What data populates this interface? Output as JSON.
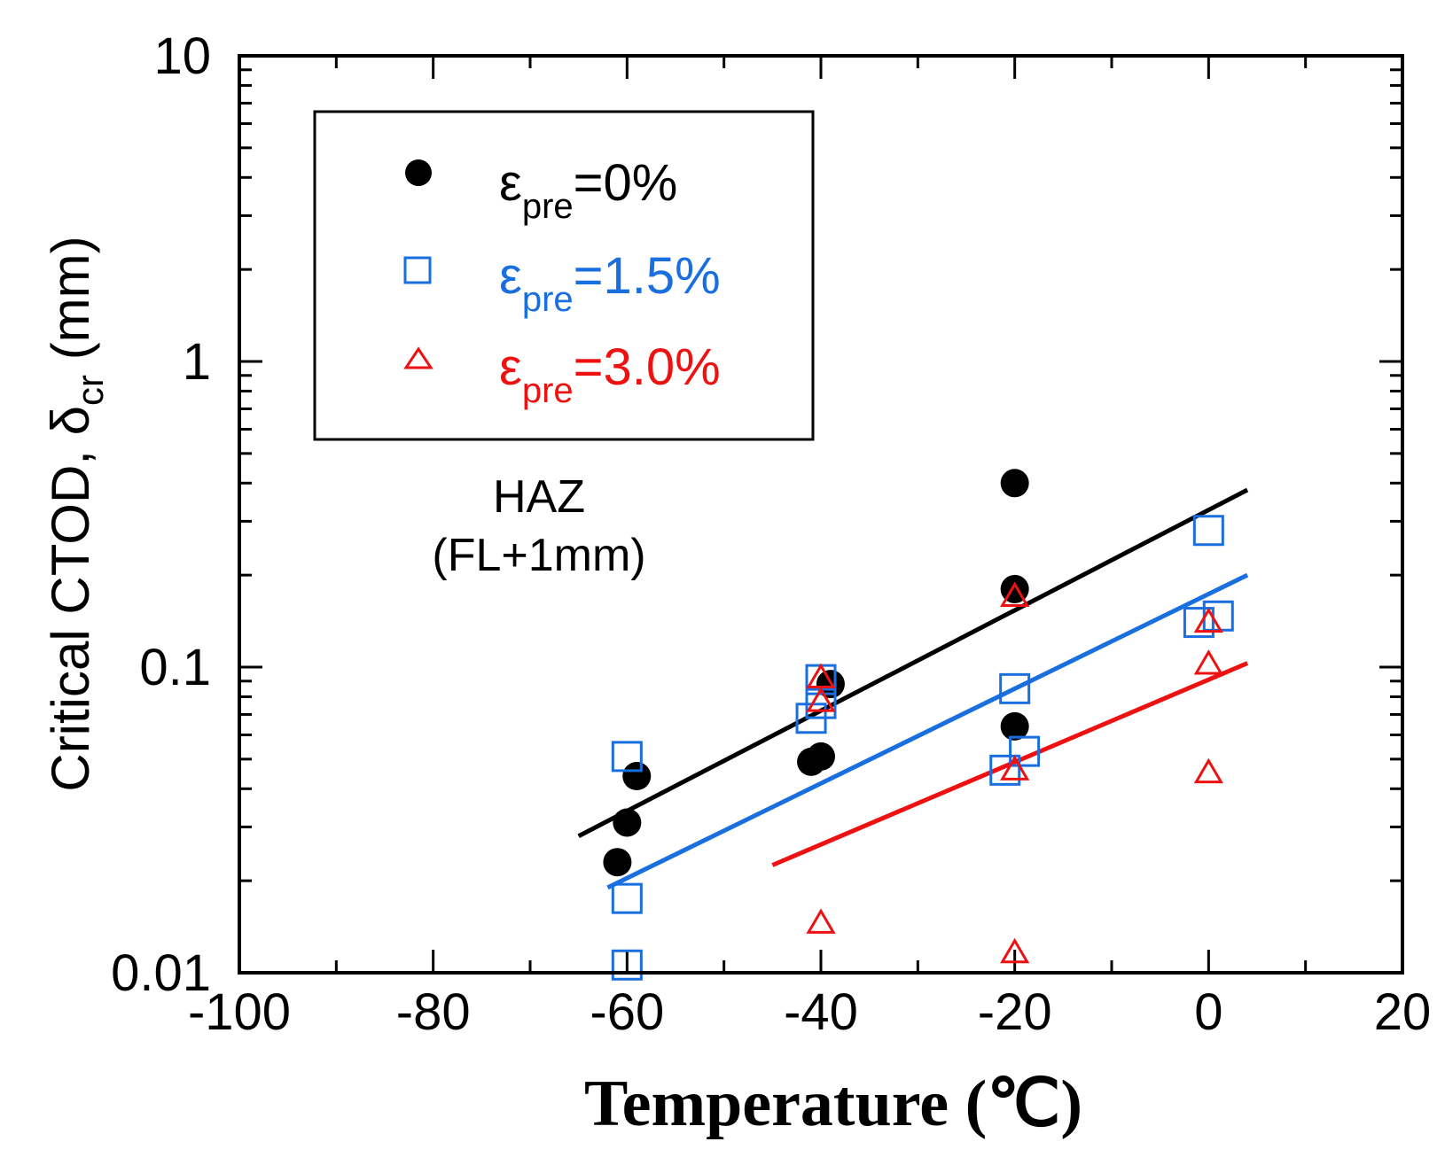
{
  "chart_data": {
    "type": "scatter",
    "title": "",
    "xlabel": "Temperature (℃)",
    "ylabel": {
      "main": "Critical CTOD, δ",
      "sub": "cr",
      "unit": " (mm)"
    },
    "xlim": [
      -100,
      20
    ],
    "ylim": [
      0.01,
      10
    ],
    "yscale": "log",
    "x_ticks": [
      "-100",
      "-80",
      "-60",
      "-40",
      "-20",
      "0",
      "20"
    ],
    "y_ticks": [
      "0.01",
      "0.1",
      "1",
      "10"
    ],
    "annotation": {
      "line1": "HAZ",
      "line2": "(FL+1mm)"
    },
    "legend_position": "top-left",
    "series": [
      {
        "name": "epre=0%",
        "label": {
          "symbol": "ε",
          "sub": "pre",
          "value": "=0%"
        },
        "color": "#000000",
        "marker": "circle",
        "points": [
          [
            -61,
            0.023
          ],
          [
            -60,
            0.031
          ],
          [
            -59,
            0.044
          ],
          [
            -41,
            0.049
          ],
          [
            -40,
            0.051
          ],
          [
            -39,
            0.088
          ],
          [
            -20,
            0.064
          ],
          [
            -20,
            0.18
          ],
          [
            -20,
            0.4
          ]
        ],
        "fit": {
          "x": [
            -65,
            4
          ],
          "y": [
            0.028,
            0.38
          ]
        }
      },
      {
        "name": "epre=1.5%",
        "label": {
          "symbol": "ε",
          "sub": "pre",
          "value": "=1.5%"
        },
        "color": "#1a6fe0",
        "marker": "square",
        "points": [
          [
            -60,
            0.0106
          ],
          [
            -60,
            0.0175
          ],
          [
            -60,
            0.051
          ],
          [
            -41,
            0.068
          ],
          [
            -40,
            0.076
          ],
          [
            -40,
            0.091
          ],
          [
            -21,
            0.046
          ],
          [
            -19,
            0.053
          ],
          [
            -20,
            0.085
          ],
          [
            -1,
            0.14
          ],
          [
            1,
            0.147
          ],
          [
            0,
            0.28
          ]
        ],
        "fit": {
          "x": [
            -62,
            4
          ],
          "y": [
            0.019,
            0.2
          ]
        }
      },
      {
        "name": "epre=3.0%",
        "label": {
          "symbol": "ε",
          "sub": "pre",
          "value": "=3.0%"
        },
        "color": "#ee1111",
        "marker": "triangle",
        "points": [
          [
            -40,
            0.0145
          ],
          [
            -40,
            0.077
          ],
          [
            -40,
            0.092
          ],
          [
            -20,
            0.0116
          ],
          [
            -20,
            0.046
          ],
          [
            -20,
            0.17
          ],
          [
            0,
            0.045
          ],
          [
            0,
            0.102
          ],
          [
            0,
            0.14
          ]
        ],
        "fit": {
          "x": [
            -45,
            4
          ],
          "y": [
            0.0225,
            0.103
          ]
        }
      }
    ]
  }
}
